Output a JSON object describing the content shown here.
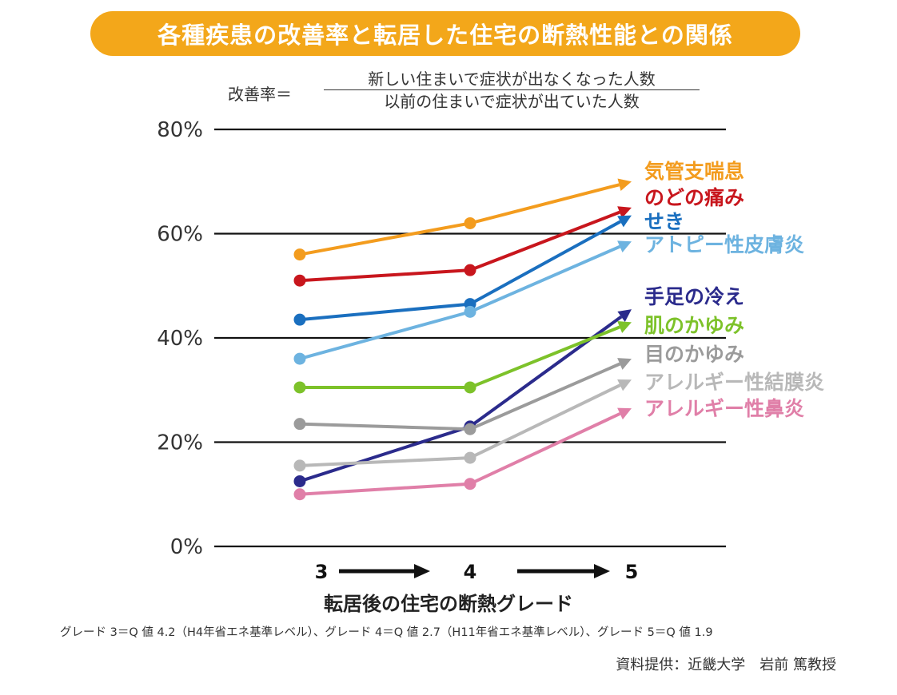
{
  "title": "各種疾患の改善率と転居した住宅の断熱性能との関係",
  "formula": {
    "lhs": "改善率＝",
    "numerator": "新しい住まいで症状が出なくなった人数",
    "denominator": "以前の住まいで症状が出ていた人数"
  },
  "note": "グレード 3＝Q 値 4.2（H4年省エネ基準レベル）、グレード 4＝Q 値 2.7（H11年省エネ基準レベル）、グレード 5＝Q 値 1.9",
  "source": "資料提供：近畿大学　岩前 篤教授",
  "chart_data": {
    "type": "line",
    "title": "各種疾患の改善率と転居した住宅の断熱性能との関係",
    "xlabel": "転居後の住宅の断熱グレード",
    "ylabel": "",
    "x": [
      3,
      4,
      5
    ],
    "x_tick_labels": [
      "3",
      "4",
      "5"
    ],
    "ylim": [
      0,
      80
    ],
    "y_ticks": [
      0,
      20,
      40,
      60,
      80
    ],
    "y_tick_labels": [
      "0%",
      "20%",
      "40%",
      "60%",
      "80%"
    ],
    "grid": true,
    "legend": "right-end labels",
    "series": [
      {
        "name": "気管支喘息",
        "color": "#f39c1e",
        "values": [
          56,
          62,
          70
        ]
      },
      {
        "name": "のどの痛み",
        "color": "#c8161d",
        "values": [
          51,
          53,
          65
        ]
      },
      {
        "name": "せき",
        "color": "#1a6fbf",
        "values": [
          43.5,
          46.5,
          63.5
        ]
      },
      {
        "name": "アトピー性皮膚炎",
        "color": "#6db3e0",
        "values": [
          36,
          45,
          58.5
        ]
      },
      {
        "name": "手足の冷え",
        "color": "#2b2b8c",
        "values": [
          12.5,
          23,
          45.5
        ]
      },
      {
        "name": "肌のかゆみ",
        "color": "#7dc22a",
        "values": [
          30.5,
          30.5,
          43
        ]
      },
      {
        "name": "目のかゆみ",
        "color": "#9b9b9b",
        "values": [
          23.5,
          22.5,
          36
        ]
      },
      {
        "name": "アレルギー性結膜炎",
        "color": "#b8b8b8",
        "values": [
          15.5,
          17,
          32
        ]
      },
      {
        "name": "アレルギー性鼻炎",
        "color": "#e07fa8",
        "values": [
          10,
          12,
          26.5
        ]
      }
    ]
  }
}
